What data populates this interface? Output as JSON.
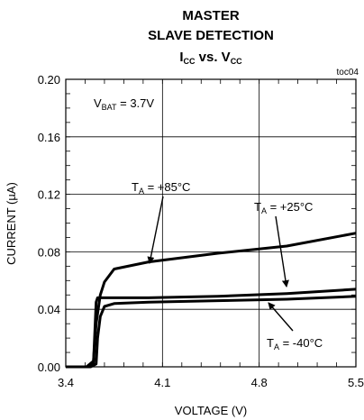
{
  "chart_data": {
    "type": "line",
    "title_lines": [
      "MASTER",
      "SLAVE DETECTION"
    ],
    "subtitle": {
      "main": "I",
      "sub1": "CC",
      "mid": " vs. V",
      "sub2": "CC"
    },
    "tag": "toc04",
    "xlabel": "VOLTAGE (V)",
    "ylabel": "CURRENT (µA)",
    "xlim": [
      3.4,
      5.5
    ],
    "ylim": [
      0.0,
      0.2
    ],
    "x_ticks": [
      "3.4",
      "4.1",
      "4.8",
      "5.5"
    ],
    "y_ticks": [
      "0.20",
      "0.16",
      "0.12",
      "0.08",
      "0.04",
      "0.00"
    ],
    "grid": true,
    "annotation_vbat": {
      "main": "V",
      "sub": "BAT",
      "rest": " = 3.7V"
    },
    "series": [
      {
        "name_parts": {
          "main": "T",
          "sub": "A",
          "rest": " = +85°C"
        },
        "x": [
          3.4,
          3.55,
          3.6,
          3.62,
          3.65,
          3.68,
          3.75,
          4.0,
          4.5,
          5.0,
          5.5
        ],
        "y": [
          0.0,
          0.0,
          0.004,
          0.03,
          0.05,
          0.059,
          0.068,
          0.073,
          0.079,
          0.084,
          0.093
        ]
      },
      {
        "name_parts": {
          "main": "T",
          "sub": "A",
          "rest": " = +25°C"
        },
        "x": [
          3.4,
          3.57,
          3.6,
          3.62,
          3.63,
          4.0,
          4.5,
          5.0,
          5.5
        ],
        "y": [
          0.0,
          0.0,
          0.002,
          0.045,
          0.048,
          0.048,
          0.049,
          0.051,
          0.054
        ]
      },
      {
        "name_parts": {
          "main": "T",
          "sub": "A",
          "rest": " = -40°C"
        },
        "x": [
          3.4,
          3.58,
          3.62,
          3.63,
          3.65,
          3.68,
          3.75,
          4.0,
          4.5,
          5.0,
          5.5
        ],
        "y": [
          0.0,
          0.0,
          0.002,
          0.02,
          0.035,
          0.042,
          0.044,
          0.045,
          0.046,
          0.047,
          0.049
        ]
      }
    ]
  }
}
